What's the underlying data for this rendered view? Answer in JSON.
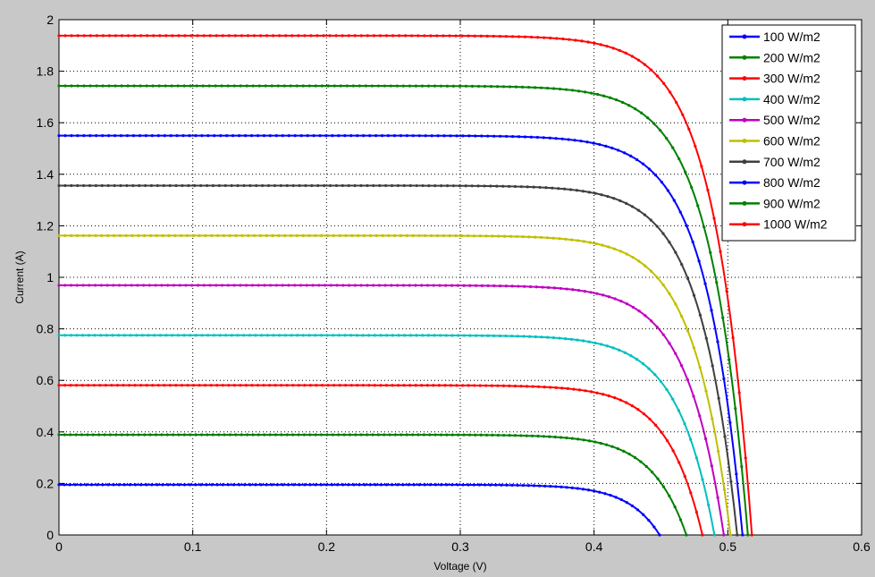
{
  "chart_data": {
    "type": "line",
    "title": "",
    "xlabel": "Voltage (V)",
    "ylabel": "Current (A)",
    "xlim": [
      0,
      0.6
    ],
    "ylim": [
      0,
      2
    ],
    "xticks": [
      0,
      0.1,
      0.2,
      0.3,
      0.4,
      0.5,
      0.6
    ],
    "yticks": [
      0,
      0.2,
      0.4,
      0.6,
      0.8,
      1,
      1.2,
      1.4,
      1.6,
      1.8,
      2
    ],
    "xtick_labels": [
      "0",
      "0.1",
      "0.2",
      "0.3",
      "0.4",
      "0.5",
      "0.6"
    ],
    "ytick_labels": [
      "0",
      "0.2",
      "0.4",
      "0.6",
      "0.8",
      "1",
      "1.2",
      "1.4",
      "1.6",
      "1.8",
      "2"
    ],
    "grid": true,
    "grid_style": "dotted",
    "legend_position": "top-right",
    "marker": "point",
    "series": [
      {
        "name": "100 W/m2",
        "color": "#0000ff",
        "isc": 0.195,
        "voc": 0.449,
        "knee_v": 0.35
      },
      {
        "name": "200 W/m2",
        "color": "#008000",
        "isc": 0.389,
        "voc": 0.469,
        "knee_v": 0.36
      },
      {
        "name": "300 W/m2",
        "color": "#ff0000",
        "isc": 0.581,
        "voc": 0.481,
        "knee_v": 0.37
      },
      {
        "name": "400 W/m2",
        "color": "#00bfbf",
        "isc": 0.775,
        "voc": 0.49,
        "knee_v": 0.375
      },
      {
        "name": "500 W/m2",
        "color": "#bf00bf",
        "isc": 0.969,
        "voc": 0.497,
        "knee_v": 0.38
      },
      {
        "name": "600 W/m2",
        "color": "#bfbf00",
        "isc": 1.162,
        "voc": 0.502,
        "knee_v": 0.385
      },
      {
        "name": "700 W/m2",
        "color": "#3f3f3f",
        "isc": 1.356,
        "voc": 0.507,
        "knee_v": 0.39
      },
      {
        "name": "800 W/m2",
        "color": "#0000ff",
        "isc": 1.55,
        "voc": 0.511,
        "knee_v": 0.393
      },
      {
        "name": "900 W/m2",
        "color": "#008000",
        "isc": 1.743,
        "voc": 0.515,
        "knee_v": 0.396
      },
      {
        "name": "1000 W/m2",
        "color": "#ff0000",
        "isc": 1.938,
        "voc": 0.518,
        "knee_v": 0.4
      }
    ]
  }
}
